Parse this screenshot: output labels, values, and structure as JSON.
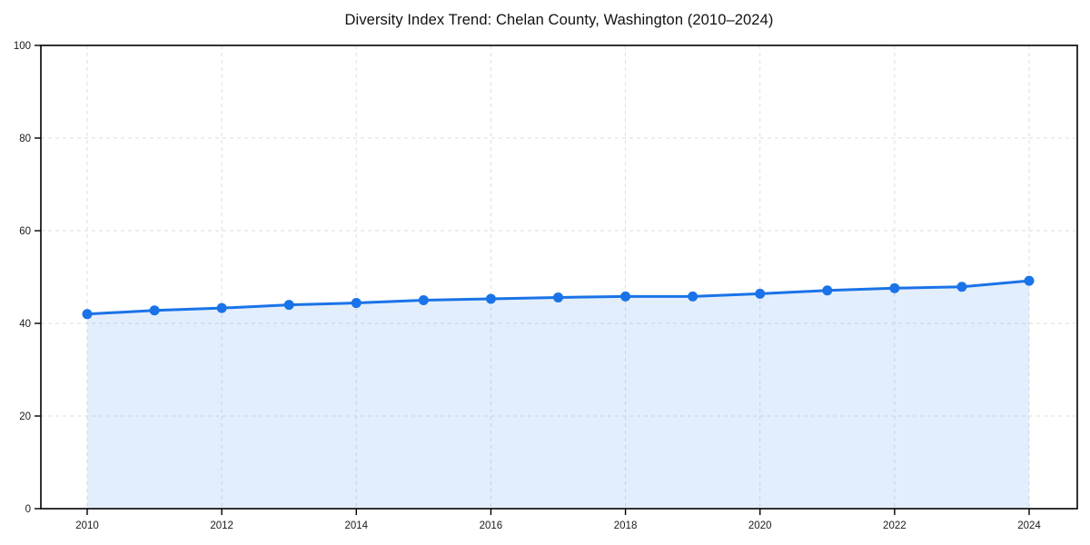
{
  "chart_data": {
    "type": "area",
    "title": "Diversity Index Trend: Chelan County, Washington (2010–2024)",
    "x": [
      2010,
      2011,
      2012,
      2013,
      2014,
      2015,
      2016,
      2017,
      2018,
      2019,
      2020,
      2021,
      2022,
      2023,
      2024
    ],
    "series": [
      {
        "name": "Diversity Index",
        "values": [
          42.0,
          42.8,
          43.3,
          44.0,
          44.4,
          45.0,
          45.3,
          45.6,
          45.8,
          45.8,
          46.4,
          47.1,
          47.6,
          47.9,
          49.2
        ]
      }
    ],
    "xlabel": "",
    "ylabel": "",
    "ylim": [
      0,
      100
    ],
    "xticks": [
      2010,
      2012,
      2014,
      2016,
      2018,
      2020,
      2022,
      2024
    ],
    "yticks": [
      0,
      20,
      40,
      60,
      80,
      100
    ],
    "grid": true,
    "grid_style": "dashed",
    "legend": false,
    "colors": {
      "line": "#1a73e8",
      "marker": "#1a73e8",
      "fill": "#1a73e8",
      "fill_opacity": 0.12,
      "grid": "#dedede",
      "axis": "#000000",
      "text": "#1a1a1a",
      "background": "#ffffff"
    }
  }
}
